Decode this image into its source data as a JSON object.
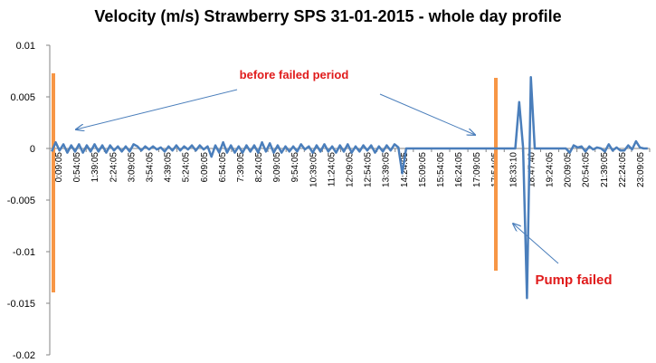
{
  "chart_data": {
    "type": "line",
    "title": "Velocity (m/s) Strawberry SPS 31-01-2015 - whole day profile",
    "xlabel": "",
    "ylabel": "",
    "ylim": [
      -0.02,
      0.01
    ],
    "yticks": [
      "0.01",
      "0.005",
      "0",
      "-0.005",
      "-0.01",
      "-0.015",
      "-0.02"
    ],
    "grid": false,
    "legend": "none",
    "x_tick_labels": [
      "0:09:05",
      "0:54:05",
      "1:39:05",
      "2:24:05",
      "3:09:05",
      "3:54:05",
      "4:39:05",
      "5:24:05",
      "6:09:05",
      "6:54:05",
      "7:39:05",
      "8:24:05",
      "9:09:05",
      "9:54:05",
      "10:39:05",
      "11:24:05",
      "12:09:05",
      "12:54:05",
      "13:39:05",
      "14:24:05",
      "15:09:05",
      "15:54:05",
      "16:24:05",
      "17:09:05",
      "17:54:05",
      "18:33:10",
      "18:47:40",
      "19:24:05",
      "20:09:05",
      "20:54:05",
      "21:39:05",
      "22:24:05",
      "23:09:05"
    ],
    "series": [
      {
        "color": "#4a7ebb",
        "values": [
          -0.0003,
          0.0006,
          -0.0002,
          0.0004,
          -0.0004,
          0.0003,
          -0.0003,
          0.0004,
          -0.0004,
          0.0003,
          -0.0003,
          0.0004,
          -0.0003,
          0.0003,
          -0.0004,
          0.0003,
          -0.0002,
          0.0002,
          -0.0003,
          0.0002,
          -0.0003,
          0.0004,
          0.0002,
          -0.0002,
          0.0002,
          -0.0001,
          0.0002,
          -0.0001,
          0.0001,
          -0.0003,
          0.0002,
          -0.0002,
          0.0003,
          -0.0002,
          0.0002,
          -0.0001,
          0.0003,
          -0.0002,
          0.0003,
          -0.0001,
          0.0002,
          -0.0008,
          0.0003,
          -0.0004,
          0.0006,
          -0.0004,
          0.0003,
          -0.0004,
          0.0002,
          -0.0004,
          0.0003,
          -0.0003,
          0.0003,
          -0.0004,
          0.0006,
          -0.0003,
          0.0005,
          -0.0004,
          0.0003,
          -0.0004,
          0.0002,
          -0.0003,
          0.0002,
          -0.0003,
          0.0004,
          -0.0001,
          0.0002,
          -0.0004,
          0.0003,
          -0.0003,
          0.0004,
          -0.0003,
          0.0002,
          -0.0004,
          0.0003,
          -0.0003,
          0.0004,
          -0.0004,
          0.0002,
          -0.0003,
          0.0003,
          -0.0002,
          0.0003,
          -0.0004,
          0.0002,
          -0.0003,
          0.0003,
          -0.0002,
          0.0004,
          0.0001,
          -0.0024,
          0,
          0,
          0,
          0,
          0,
          0,
          0,
          0,
          0,
          0,
          0,
          0,
          0,
          0,
          0,
          0,
          0,
          0,
          0,
          0,
          0,
          0,
          0,
          0,
          0,
          0,
          0,
          0,
          0,
          0.0045,
          0.0001,
          -0.0145,
          0.0069,
          0,
          0,
          0,
          0,
          0,
          0,
          0,
          0,
          0,
          -0.0004,
          0.0003,
          0.0001,
          0.0002,
          -0.0003,
          0.0002,
          -0.0001,
          0.0001,
          0,
          -0.0003,
          0.0004,
          -0.0002,
          0.0001,
          -0.0002,
          -0.0002,
          0.0003,
          -0.0001,
          0.0007,
          0.0001,
          0,
          0
        ]
      }
    ],
    "annotations": [
      {
        "text": "before failed period",
        "color": "#e01b1b"
      },
      {
        "text": "Pump failed",
        "color": "#e01b1b"
      }
    ],
    "highlight_color": "#f79646",
    "arrow_color": "#4a7ebb"
  }
}
